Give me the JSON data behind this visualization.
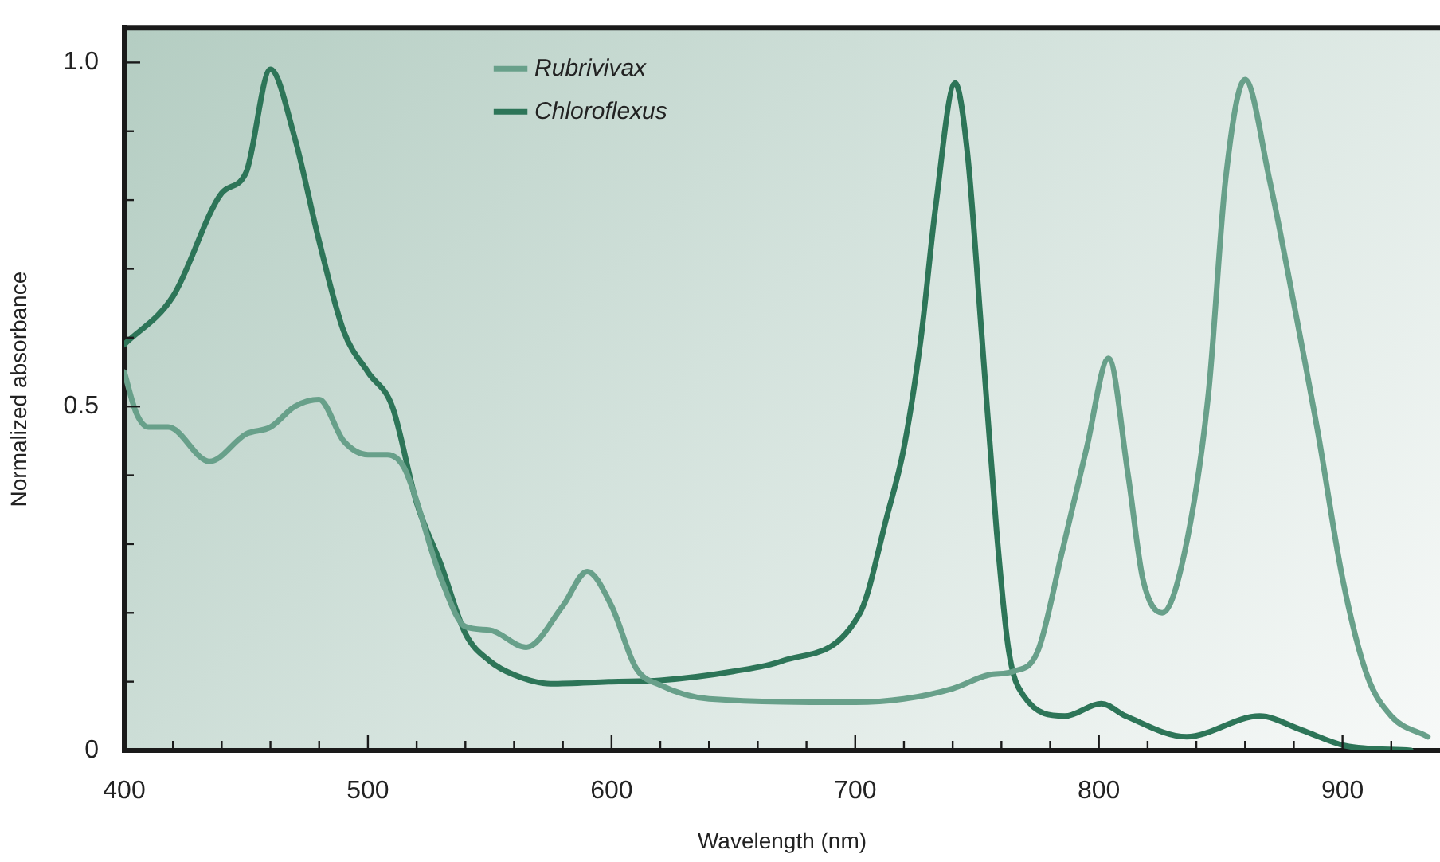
{
  "chart_data": {
    "type": "line",
    "xlabel": "Wavelength (nm)",
    "ylabel": "Normalized absorbance",
    "xlim": [
      400,
      940
    ],
    "ylim": [
      0,
      1.05
    ],
    "xticks": [
      400,
      {
        "value": 420,
        "label": null
      },
      {
        "value": 440,
        "label": null
      },
      {
        "value": 460,
        "label": null
      },
      {
        "value": 480,
        "label": null
      },
      500,
      {
        "value": 520,
        "label": null
      },
      {
        "value": 540,
        "label": null
      },
      {
        "value": 560,
        "label": null
      },
      {
        "value": 580,
        "label": null
      },
      600,
      {
        "value": 620,
        "label": null
      },
      {
        "value": 640,
        "label": null
      },
      {
        "value": 660,
        "label": null
      },
      {
        "value": 680,
        "label": null
      },
      700,
      {
        "value": 720,
        "label": null
      },
      {
        "value": 740,
        "label": null
      },
      {
        "value": 760,
        "label": null
      },
      {
        "value": 780,
        "label": null
      },
      800,
      {
        "value": 820,
        "label": null
      },
      {
        "value": 840,
        "label": null
      },
      {
        "value": 860,
        "label": null
      },
      {
        "value": 880,
        "label": null
      },
      900,
      {
        "value": 920,
        "label": null
      }
    ],
    "yticks": [
      0,
      {
        "value": 0.1,
        "label": null
      },
      {
        "value": 0.2,
        "label": null
      },
      {
        "value": 0.3,
        "label": null
      },
      {
        "value": 0.4,
        "label": null
      },
      0.5,
      {
        "value": 0.6,
        "label": null
      },
      {
        "value": 0.7,
        "label": null
      },
      {
        "value": 0.8,
        "label": null
      },
      {
        "value": 0.9,
        "label": null
      },
      {
        "value": 1,
        "label": "1.0"
      }
    ],
    "grid": false,
    "legend": "top left",
    "marker": "none",
    "line_style": "solid",
    "series": [
      {
        "name": "Rubrivivax",
        "color": "#68a08a",
        "x": [
          400,
          405,
          410,
          418,
          435,
          450,
          460,
          470,
          480,
          490,
          500,
          508,
          515,
          530,
          540,
          550,
          565,
          580,
          590,
          600,
          610,
          620,
          640,
          700,
          720,
          740,
          755,
          765,
          775,
          785,
          795,
          804,
          812,
          818,
          826,
          835,
          845,
          852,
          860,
          870,
          880,
          890,
          900,
          910,
          920,
          935
        ],
        "values": [
          0.55,
          0.49,
          0.47,
          0.47,
          0.42,
          0.46,
          0.47,
          0.5,
          0.51,
          0.45,
          0.43,
          0.43,
          0.41,
          0.25,
          0.18,
          0.175,
          0.15,
          0.21,
          0.26,
          0.21,
          0.12,
          0.095,
          0.075,
          0.07,
          0.075,
          0.09,
          0.11,
          0.115,
          0.145,
          0.29,
          0.44,
          0.57,
          0.4,
          0.25,
          0.2,
          0.285,
          0.52,
          0.83,
          0.975,
          0.83,
          0.65,
          0.46,
          0.25,
          0.11,
          0.05,
          0.02
        ]
      },
      {
        "name": "Chloroflexus",
        "color": "#2d7558",
        "x": [
          400,
          420,
          440,
          450,
          460,
          470,
          480,
          490,
          500,
          510,
          520,
          530,
          540,
          550,
          560,
          575,
          600,
          620,
          650,
          670,
          702,
          713,
          720,
          727,
          733,
          741,
          746,
          752,
          758,
          763,
          769,
          786,
          801,
          811,
          836,
          866,
          883,
          901,
          928
        ],
        "values": [
          0.59,
          0.66,
          0.81,
          0.84,
          0.99,
          0.89,
          0.74,
          0.61,
          0.55,
          0.5,
          0.36,
          0.27,
          0.17,
          0.13,
          0.11,
          0.097,
          0.1,
          0.102,
          0.115,
          0.13,
          0.2,
          0.34,
          0.44,
          0.6,
          0.79,
          0.97,
          0.87,
          0.6,
          0.32,
          0.145,
          0.08,
          0.05,
          0.068,
          0.05,
          0.02,
          0.05,
          0.03,
          0.007,
          0
        ]
      }
    ]
  }
}
